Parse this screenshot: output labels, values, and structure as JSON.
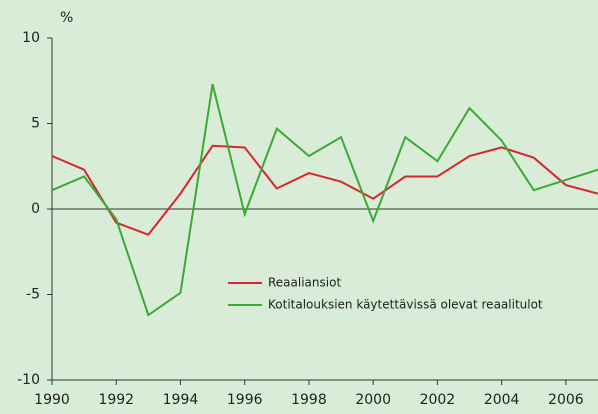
{
  "chart_data": {
    "type": "line",
    "y_unit": "%",
    "x": [
      1990,
      1991,
      1992,
      1993,
      1994,
      1995,
      1996,
      1997,
      1998,
      1999,
      2000,
      2001,
      2002,
      2003,
      2004,
      2005,
      2006,
      2007
    ],
    "series": [
      {
        "name": "Reaaliansiot",
        "color": "#d7262f",
        "values": [
          3.1,
          2.3,
          -0.8,
          -1.5,
          0.9,
          3.7,
          3.6,
          1.2,
          2.1,
          1.6,
          0.6,
          1.9,
          1.9,
          3.1,
          3.6,
          3.0,
          1.4,
          0.9
        ]
      },
      {
        "name": "Kotitalouksien käytettävissä olevat reaalitulot",
        "color": "#3aaa35",
        "values": [
          1.1,
          1.9,
          -0.6,
          -6.2,
          -4.9,
          7.3,
          -0.3,
          4.7,
          3.1,
          4.2,
          -0.7,
          4.2,
          2.8,
          5.9,
          4.0,
          1.1,
          1.7,
          2.3
        ]
      }
    ],
    "xlim": [
      1990,
      2007
    ],
    "xticks": [
      1990,
      1992,
      1994,
      1996,
      1998,
      2000,
      2002,
      2004,
      2006
    ],
    "ylim": [
      -10,
      10
    ],
    "yticks": [
      -10,
      -5,
      0,
      5,
      10
    ]
  }
}
